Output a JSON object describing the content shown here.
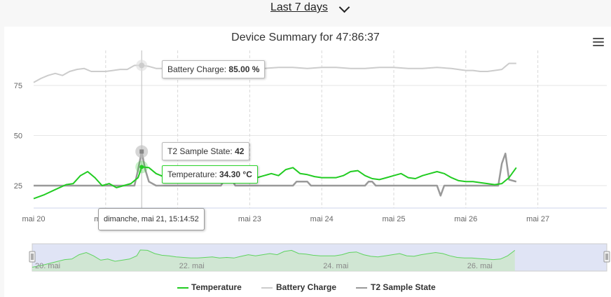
{
  "range_selector": {
    "label": "Last 7 days"
  },
  "chart_data": {
    "type": "line",
    "title": "Device Summary for 47:86:37",
    "xlabel": "",
    "ylabel": "",
    "ylim": [
      15,
      95
    ],
    "x_ticks": [
      "mai 20",
      "mai 21",
      "mai 22",
      "mai 23",
      "mai 24",
      "mai 25",
      "mai 26",
      "mai 27"
    ],
    "y_ticks": [
      25,
      50,
      75
    ],
    "grid": true,
    "legend_position": "bottom",
    "series": [
      {
        "name": "Temperature",
        "color": "#22cc22",
        "x": [
          20.0,
          20.15,
          20.3,
          20.45,
          20.55,
          20.65,
          20.75,
          20.85,
          20.95,
          21.05,
          21.15,
          21.25,
          21.35,
          21.45,
          21.5,
          21.6,
          21.7,
          21.8,
          21.9,
          22.0,
          22.1,
          22.2,
          22.3,
          22.4,
          22.5,
          22.6,
          22.7,
          22.8,
          22.9,
          23.0,
          23.1,
          23.2,
          23.3,
          23.4,
          23.5,
          23.6,
          23.7,
          23.8,
          23.9,
          24.0,
          24.1,
          24.2,
          24.3,
          24.4,
          24.5,
          24.6,
          24.7,
          24.8,
          24.9,
          25.0,
          25.1,
          25.2,
          25.3,
          25.4,
          25.5,
          25.6,
          25.7,
          25.8,
          25.9,
          26.0,
          26.1,
          26.2,
          26.3,
          26.4,
          26.5,
          26.6,
          26.7
        ],
        "values": [
          18.5,
          20.5,
          23,
          25.5,
          26,
          30,
          32,
          29,
          25,
          26,
          24,
          25,
          26,
          29,
          34.3,
          34,
          31,
          29.5,
          29,
          28,
          27.5,
          27,
          27,
          27.5,
          28,
          27,
          27.5,
          27,
          28.5,
          30,
          29,
          30,
          31,
          30,
          33,
          34,
          31,
          30.5,
          29.5,
          29,
          29,
          29,
          30,
          32,
          32.5,
          30,
          28.5,
          28,
          29,
          30,
          31,
          29,
          28.5,
          30,
          31,
          32,
          31,
          29,
          27.5,
          27,
          27,
          26.5,
          26,
          25.5,
          26,
          29,
          34
        ]
      },
      {
        "name": "Battery Charge",
        "color": "#cccccc",
        "x": [
          20.0,
          20.1,
          20.2,
          20.3,
          20.4,
          20.5,
          20.6,
          20.7,
          20.8,
          20.9,
          21.0,
          21.1,
          21.2,
          21.3,
          21.4,
          21.5,
          21.6,
          21.7,
          21.8,
          21.9,
          22.0,
          22.1,
          22.2,
          22.3,
          22.4,
          22.5,
          22.6,
          22.7,
          22.8,
          22.9,
          23.0,
          23.2,
          23.4,
          23.6,
          23.8,
          24.0,
          24.2,
          24.4,
          24.6,
          24.8,
          25.0,
          25.2,
          25.4,
          25.6,
          25.8,
          26.0,
          26.1,
          26.2,
          26.3,
          26.4,
          26.5,
          26.55,
          26.6,
          26.7
        ],
        "values": [
          76.5,
          78.5,
          80,
          81,
          80,
          82,
          83,
          83.5,
          82,
          82,
          82,
          82.5,
          83,
          83,
          85,
          85,
          84.5,
          83.5,
          83.5,
          84,
          85,
          85,
          85,
          85,
          84.5,
          84.5,
          85,
          85,
          84.5,
          84,
          84,
          83.5,
          84,
          84,
          83.5,
          84,
          84,
          83.5,
          83.5,
          84,
          84,
          83.5,
          83.5,
          84,
          83.5,
          82.5,
          82.5,
          82,
          82,
          82.5,
          83,
          84.5,
          86,
          86
        ]
      },
      {
        "name": "T2 Sample State",
        "color": "#999999",
        "x": [
          20.0,
          20.5,
          21.0,
          21.4,
          21.45,
          21.5,
          21.55,
          21.6,
          21.7,
          22.0,
          22.6,
          22.65,
          22.75,
          22.8,
          23.0,
          23.6,
          23.65,
          23.8,
          23.85,
          24.0,
          24.6,
          24.65,
          24.7,
          24.75,
          25.0,
          25.6,
          25.65,
          25.7,
          25.75,
          26.0,
          26.3,
          26.45,
          26.5,
          26.55,
          26.6,
          26.7
        ],
        "values": [
          25,
          25,
          25,
          25,
          33,
          42,
          33,
          27,
          25,
          25,
          25,
          28,
          28,
          25,
          25,
          25,
          27,
          27,
          25,
          25,
          25,
          27,
          27,
          25,
          25,
          25,
          20,
          25,
          25,
          25,
          25,
          25,
          36,
          41,
          28,
          27
        ]
      }
    ],
    "navigator": {
      "x_ticks": [
        "20. mai",
        "22. mai",
        "24. mai",
        "26. mai"
      ]
    },
    "tooltips": {
      "battery": {
        "label": "Battery Charge:",
        "value": "85.00 %"
      },
      "t2": {
        "label": "T2 Sample State:",
        "value": "42"
      },
      "temperature": {
        "label": "Temperature:",
        "value": "34.30 °C"
      },
      "date": "dimanche, mai 21, 15:14:52"
    }
  }
}
